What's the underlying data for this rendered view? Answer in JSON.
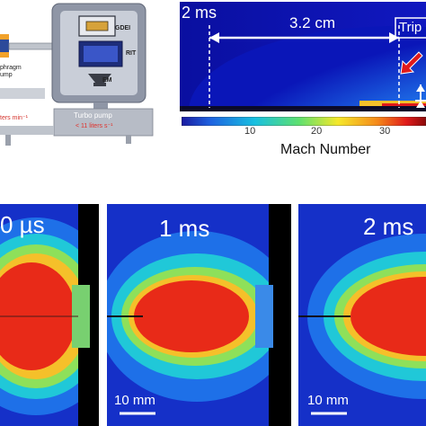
{
  "schematic": {
    "gdei_label": "GDEI",
    "rit_label": "RIT",
    "em_label": "EM",
    "left_label_1": "phragm",
    "left_label_2": "ump",
    "left_rate": "ters min⁻¹",
    "turbo_label": "Turbo pump",
    "turbo_rate": "< 11 liters s⁻¹"
  },
  "top_image": {
    "time_label": "2 ms",
    "distance_label": "3.2 cm",
    "cut_label": "Trip"
  },
  "colorbar": {
    "ticks": [
      "10",
      "20",
      "30"
    ],
    "title": "Mach Number",
    "colors": [
      "#1a1aa0",
      "#1e63e0",
      "#18c0e0",
      "#5ee070",
      "#f5e82a",
      "#f58a1a",
      "#e01a1a",
      "#8a0a0a"
    ]
  },
  "bottom_panels": [
    {
      "time_label": "0 µs",
      "scale_label": ""
    },
    {
      "time_label": "1 ms",
      "scale_label": "10 mm"
    },
    {
      "time_label": "2 ms",
      "scale_label": "10 mm"
    }
  ]
}
